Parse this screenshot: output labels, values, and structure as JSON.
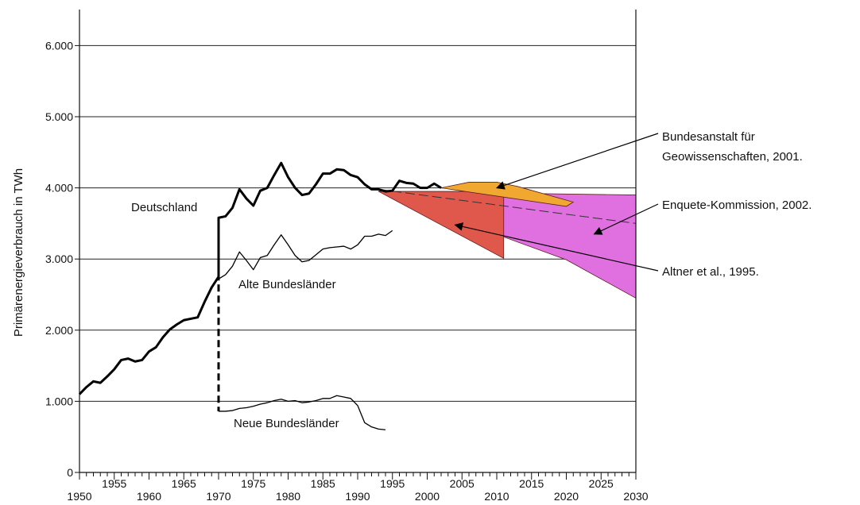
{
  "chart_data": {
    "type": "line",
    "title": "",
    "xlabel": "",
    "ylabel": "Primärenergieverbrauch in TWh",
    "xlim": [
      1950,
      2030
    ],
    "ylim": [
      0,
      6500
    ],
    "grid": "horizontal",
    "x_ticks": [
      1950,
      1955,
      1960,
      1965,
      1970,
      1975,
      1980,
      1985,
      1990,
      1995,
      2000,
      2005,
      2010,
      2015,
      2020,
      2025,
      2030
    ],
    "x_tick_labels": [
      "1950",
      "1955",
      "1960",
      "1965",
      "1970",
      "1975",
      "1980",
      "1985",
      "1990",
      "1995",
      "2000",
      "2005",
      "2010",
      "2015",
      "2020",
      "2025",
      "2030"
    ],
    "y_ticks": [
      0,
      1000,
      2000,
      3000,
      4000,
      5000,
      6000
    ],
    "y_tick_labels": [
      "0",
      "1.000",
      "2.000",
      "3.000",
      "4.000",
      "5.000",
      "6.000"
    ],
    "series": [
      {
        "name": "Deutschland",
        "color": "#000000",
        "points": [
          [
            1950,
            1100
          ],
          [
            1951,
            1200
          ],
          [
            1952,
            1280
          ],
          [
            1953,
            1260
          ],
          [
            1954,
            1350
          ],
          [
            1955,
            1450
          ],
          [
            1956,
            1580
          ],
          [
            1957,
            1600
          ],
          [
            1958,
            1560
          ],
          [
            1959,
            1580
          ],
          [
            1960,
            1700
          ],
          [
            1961,
            1760
          ],
          [
            1962,
            1900
          ],
          [
            1963,
            2010
          ],
          [
            1964,
            2080
          ],
          [
            1965,
            2140
          ],
          [
            1966,
            2160
          ],
          [
            1967,
            2180
          ],
          [
            1968,
            2400
          ],
          [
            1969,
            2600
          ],
          [
            1970,
            2750
          ],
          [
            1970,
            3580
          ],
          [
            1971,
            3600
          ],
          [
            1972,
            3720
          ],
          [
            1973,
            3980
          ],
          [
            1974,
            3850
          ],
          [
            1975,
            3750
          ],
          [
            1976,
            3960
          ],
          [
            1977,
            4000
          ],
          [
            1978,
            4180
          ],
          [
            1979,
            4350
          ],
          [
            1980,
            4150
          ],
          [
            1981,
            4000
          ],
          [
            1982,
            3900
          ],
          [
            1983,
            3920
          ],
          [
            1984,
            4050
          ],
          [
            1985,
            4200
          ],
          [
            1986,
            4200
          ],
          [
            1987,
            4260
          ],
          [
            1988,
            4250
          ],
          [
            1989,
            4180
          ],
          [
            1990,
            4150
          ],
          [
            1991,
            4050
          ],
          [
            1992,
            3980
          ],
          [
            1993,
            3980
          ],
          [
            1994,
            3950
          ],
          [
            1995,
            3960
          ],
          [
            1996,
            4100
          ],
          [
            1997,
            4070
          ],
          [
            1998,
            4060
          ],
          [
            1999,
            4000
          ],
          [
            2000,
            4000
          ],
          [
            2001,
            4060
          ],
          [
            2002,
            4000
          ]
        ]
      },
      {
        "name": "Alte Bundesländer",
        "color": "#000000",
        "points": [
          [
            1970,
            2720
          ],
          [
            1971,
            2780
          ],
          [
            1972,
            2900
          ],
          [
            1973,
            3100
          ],
          [
            1974,
            2980
          ],
          [
            1975,
            2850
          ],
          [
            1976,
            3020
          ],
          [
            1977,
            3050
          ],
          [
            1978,
            3200
          ],
          [
            1979,
            3340
          ],
          [
            1980,
            3200
          ],
          [
            1981,
            3050
          ],
          [
            1982,
            2960
          ],
          [
            1983,
            2980
          ],
          [
            1984,
            3060
          ],
          [
            1985,
            3140
          ],
          [
            1986,
            3160
          ],
          [
            1987,
            3170
          ],
          [
            1988,
            3180
          ],
          [
            1989,
            3140
          ],
          [
            1990,
            3200
          ],
          [
            1991,
            3320
          ],
          [
            1992,
            3320
          ],
          [
            1993,
            3350
          ],
          [
            1994,
            3330
          ],
          [
            1995,
            3400
          ]
        ]
      },
      {
        "name": "Neue Bundesländer",
        "color": "#000000",
        "points": [
          [
            1970,
            860
          ],
          [
            1971,
            860
          ],
          [
            1972,
            870
          ],
          [
            1973,
            900
          ],
          [
            1974,
            910
          ],
          [
            1975,
            930
          ],
          [
            1976,
            960
          ],
          [
            1977,
            980
          ],
          [
            1978,
            1010
          ],
          [
            1979,
            1030
          ],
          [
            1980,
            1000
          ],
          [
            1981,
            1010
          ],
          [
            1982,
            980
          ],
          [
            1983,
            990
          ],
          [
            1984,
            1010
          ],
          [
            1985,
            1040
          ],
          [
            1986,
            1040
          ],
          [
            1987,
            1080
          ],
          [
            1988,
            1060
          ],
          [
            1989,
            1040
          ],
          [
            1990,
            940
          ],
          [
            1991,
            700
          ],
          [
            1992,
            640
          ],
          [
            1993,
            610
          ],
          [
            1994,
            600
          ]
        ]
      }
    ],
    "join_line": {
      "x": 1970,
      "y_from": 3580,
      "y_to": 860,
      "style": "dashed"
    },
    "projections": [
      {
        "name": "Enquete-Kommission, 2002.",
        "color": "#e070e0",
        "polygon": [
          [
            1993,
            3950
          ],
          [
            2030,
            3900
          ],
          [
            2030,
            2450
          ],
          [
            2020,
            2990
          ],
          [
            1993,
            3950
          ]
        ]
      },
      {
        "name": "Altner et al., 1995.",
        "color": "#e0584c",
        "polygon": [
          [
            1993,
            3950
          ],
          [
            2011,
            3950
          ],
          [
            2011,
            3010
          ],
          [
            1993,
            3950
          ]
        ]
      },
      {
        "name": "Bundesanstalt für Geowissenschaften, 2001.",
        "color": "#f0a830",
        "polygon": [
          [
            2002,
            4000
          ],
          [
            2006,
            4080
          ],
          [
            2010,
            4080
          ],
          [
            2013,
            4020
          ],
          [
            2021,
            3800
          ],
          [
            2020,
            3740
          ],
          [
            2002,
            4000
          ]
        ]
      }
    ],
    "trend_line": {
      "x1": 1993,
      "y1": 3980,
      "x2": 2030,
      "y2": 3500
    },
    "labels": {
      "deutschland": "Deutschland",
      "alte": "Alte Bundesländer",
      "neue": "Neue Bundesländer",
      "bgr_line1": "Bundesanstalt für",
      "bgr_line2": "Geowissenschaften, 2001.",
      "enquete": "Enquete-Kommission, 2002.",
      "altner": "Altner et al., 1995."
    },
    "annotations": [
      {
        "label": "bgr",
        "target": [
          2010,
          4000
        ]
      },
      {
        "label": "enquete",
        "target": [
          2024,
          3350
        ]
      },
      {
        "label": "altner",
        "target": [
          2004,
          3480
        ]
      }
    ]
  }
}
